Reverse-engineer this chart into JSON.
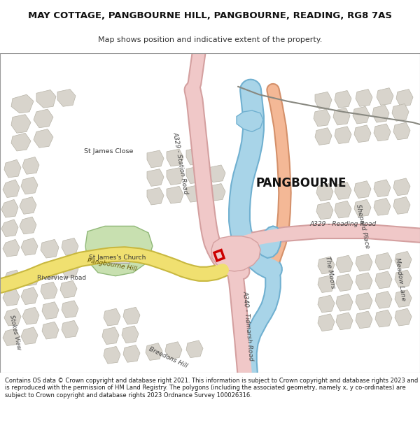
{
  "title_line1": "MAY COTTAGE, PANGBOURNE HILL, PANGBOURNE, READING, RG8 7AS",
  "title_line2": "Map shows position and indicative extent of the property.",
  "footer_text": "Contains OS data © Crown copyright and database right 2021. This information is subject to Crown copyright and database rights 2023 and is reproduced with the permission of HM Land Registry. The polygons (including the associated geometry, namely x, y co-ordinates) are subject to Crown copyright and database rights 2023 Ordnance Survey 100026316.",
  "map_bg": "#f2f0eb",
  "road_pink": "#f0c8c8",
  "road_pink_edge": "#d4a0a0",
  "road_yellow": "#f0e070",
  "road_yellow_edge": "#c8b840",
  "road_white": "#ffffff",
  "road_white_edge": "#cccccc",
  "river_blue": "#a8d4e8",
  "river_blue_edge": "#70b0d0",
  "green_area": "#c8e0b0",
  "green_edge": "#90b878",
  "building_color": "#d8d4cc",
  "building_outline": "#b8b4a8",
  "rail_color": "#888880",
  "property_red": "#cc0000",
  "text_dark": "#222222",
  "text_mid": "#444444",
  "text_road": "#555544"
}
